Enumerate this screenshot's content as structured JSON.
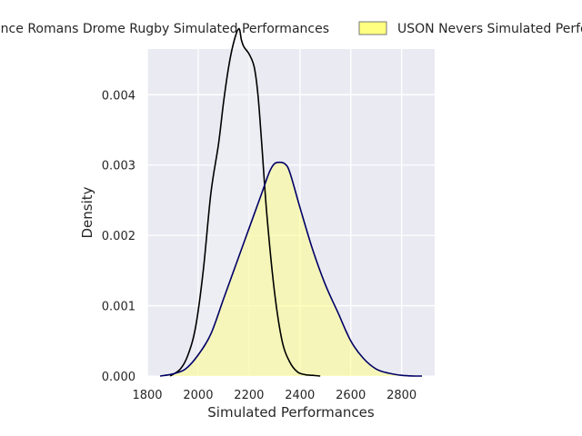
{
  "chart_data": {
    "type": "area",
    "xlabel": "Simulated Performances",
    "ylabel": "Density",
    "xlim": [
      1800,
      2930
    ],
    "ylim": [
      0,
      0.00465
    ],
    "x_ticks": [
      1800,
      2000,
      2200,
      2400,
      2600,
      2800
    ],
    "y_ticks": [
      0.0,
      0.001,
      0.002,
      0.003,
      0.004
    ],
    "y_tick_labels": [
      "0.000",
      "0.001",
      "0.002",
      "0.003",
      "0.004"
    ],
    "grid": true,
    "legend_position": "top",
    "series": [
      {
        "name": "Valence Romans Drome Rugby Simulated Performances",
        "fill_color": "#f0f0f5",
        "line_color": "#000000",
        "x": [
          1890,
          1930,
          1960,
          1990,
          2020,
          2050,
          2080,
          2100,
          2120,
          2140,
          2160,
          2170,
          2180,
          2200,
          2220,
          2235,
          2250,
          2270,
          2300,
          2330,
          2360,
          2390,
          2420,
          2450,
          2480
        ],
        "y": [
          0.0,
          0.0001,
          0.0003,
          0.0007,
          0.0015,
          0.0026,
          0.0033,
          0.0039,
          0.0044,
          0.00475,
          0.00494,
          0.00478,
          0.00468,
          0.00458,
          0.0044,
          0.004,
          0.0033,
          0.0023,
          0.0012,
          0.0005,
          0.0002,
          6e-05,
          2e-05,
          1e-05,
          0.0
        ]
      },
      {
        "name": "USON Nevers Simulated Performances",
        "fill_color": "#ffff80",
        "line_color": "#000066",
        "x": [
          1850,
          1900,
          1950,
          2000,
          2050,
          2100,
          2150,
          2200,
          2250,
          2280,
          2300,
          2320,
          2340,
          2360,
          2400,
          2450,
          2500,
          2550,
          2600,
          2650,
          2700,
          2750,
          2800,
          2850,
          2880
        ],
        "y": [
          0.0,
          3e-05,
          0.0001,
          0.0003,
          0.0006,
          0.0011,
          0.0016,
          0.0021,
          0.0026,
          0.0029,
          0.00302,
          0.00304,
          0.00302,
          0.0029,
          0.0024,
          0.0018,
          0.0013,
          0.0009,
          0.0005,
          0.00025,
          0.0001,
          4e-05,
          1e-05,
          0.0,
          0.0
        ]
      }
    ]
  },
  "legend": {
    "items": [
      {
        "label": "Valence Romans Drome Rugby Simulated Performances",
        "swatch": "#f0f0f5",
        "edge": "#777777"
      },
      {
        "label": "USON Nevers Simulated Performances",
        "swatch": "#ffff80",
        "edge": "#777777"
      }
    ]
  },
  "colors": {
    "plot_background": "#eaeaf2",
    "grid": "#ffffff"
  }
}
